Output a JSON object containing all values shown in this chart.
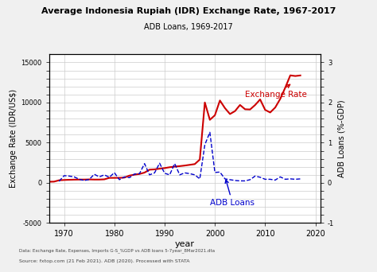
{
  "title": "Average Indonesia Rupiah (IDR) Exchange Rate, 1967-2017",
  "subtitle": "ADB Loans, 1969-2017",
  "xlabel": "year",
  "ylabel_left": "Exchange Rate (IDR/US$)",
  "ylabel_right": "ADB Loans (%-GDP)",
  "footnote1": "Data: Exchange Rate, Expenses, Imports G-S_%GDP vs ADB loans 5-7year_8Mar2021.dta",
  "footnote2": "Source: fxtop.com (21 Feb 2021). ADB (2020). Processed with STATA",
  "xlim": [
    1967,
    2021
  ],
  "ylim_left": [
    -5000,
    16000
  ],
  "ylim_right": [
    -1.0,
    3.2
  ],
  "yticks_left": [
    -5000,
    -4000,
    -3000,
    -2000,
    -1000,
    0,
    1000,
    2000,
    3000,
    4000,
    5000,
    6000,
    7000,
    8000,
    9000,
    10000,
    11000,
    12000,
    13000,
    14000,
    15000
  ],
  "yticks_right": [
    -1.0,
    -0.8,
    -0.6,
    -0.4,
    -0.2,
    0.0,
    0.2,
    0.4,
    0.6,
    0.8,
    1.0,
    1.2,
    1.4,
    1.6,
    1.8,
    2.0,
    2.2,
    2.4,
    2.6,
    2.8,
    3.0
  ],
  "ytick_labels_left": [
    "-5000",
    "",
    "",
    "",
    "",
    "0",
    "",
    "",
    "",
    "",
    "5000",
    "",
    "",
    "",
    "",
    "10000",
    "",
    "",
    "",
    "",
    "15000"
  ],
  "ytick_labels_right": [
    "-1",
    "",
    "",
    "",
    "",
    "0",
    "",
    "",
    "",
    "",
    "1",
    "",
    "",
    "",
    "",
    "2",
    "",
    "",
    "",
    "",
    "3"
  ],
  "xticks": [
    1970,
    1980,
    1990,
    2000,
    2010,
    2020
  ],
  "exchange_rate_years": [
    1967,
    1968,
    1969,
    1970,
    1971,
    1972,
    1973,
    1974,
    1975,
    1976,
    1977,
    1978,
    1979,
    1980,
    1981,
    1982,
    1983,
    1984,
    1985,
    1986,
    1987,
    1988,
    1989,
    1990,
    1991,
    1992,
    1993,
    1994,
    1995,
    1996,
    1997,
    1998,
    1999,
    2000,
    2001,
    2002,
    2003,
    2004,
    2005,
    2006,
    2007,
    2008,
    2009,
    2010,
    2011,
    2012,
    2013,
    2014,
    2015,
    2016,
    2017
  ],
  "exchange_rate_values": [
    143,
    158,
    326,
    363,
    387,
    405,
    415,
    415,
    432,
    415,
    415,
    442,
    625,
    627,
    632,
    661,
    909,
    1026,
    1111,
    1283,
    1644,
    1685,
    1770,
    1843,
    1950,
    2029,
    2087,
    2160,
    2249,
    2342,
    2909,
    10014,
    7855,
    8422,
    10261,
    9311,
    8577,
    8939,
    9705,
    9168,
    9141,
    9699,
    10390,
    9090,
    8770,
    9387,
    10461,
    11865,
    13389,
    13308,
    13381
  ],
  "adb_loans_years": [
    1969,
    1970,
    1971,
    1972,
    1973,
    1974,
    1975,
    1976,
    1977,
    1978,
    1979,
    1980,
    1981,
    1982,
    1983,
    1984,
    1985,
    1986,
    1987,
    1988,
    1989,
    1990,
    1991,
    1992,
    1993,
    1994,
    1995,
    1996,
    1997,
    1998,
    1999,
    2000,
    2001,
    2002,
    2003,
    2004,
    2005,
    2006,
    2007,
    2008,
    2009,
    2010,
    2011,
    2012,
    2013,
    2014,
    2015,
    2016,
    2017
  ],
  "adb_loans_values": [
    0.04,
    0.18,
    0.17,
    0.15,
    0.09,
    0.06,
    0.085,
    0.215,
    0.15,
    0.2,
    0.14,
    0.255,
    0.08,
    0.15,
    0.13,
    0.22,
    0.23,
    0.48,
    0.2,
    0.25,
    0.49,
    0.24,
    0.2,
    0.48,
    0.2,
    0.25,
    0.23,
    0.2,
    0.1,
    0.95,
    1.26,
    0.26,
    0.27,
    0.1,
    0.08,
    0.06,
    0.05,
    0.05,
    0.08,
    0.17,
    0.14,
    0.09,
    0.09,
    0.07,
    0.15,
    0.09,
    0.1,
    0.09,
    0.1
  ],
  "exchange_rate_color": "#cc0000",
  "adb_loans_color": "#0000cc",
  "background_color": "#f0f0f0",
  "plot_bg_color": "#ffffff",
  "grid_color": "#cccccc"
}
